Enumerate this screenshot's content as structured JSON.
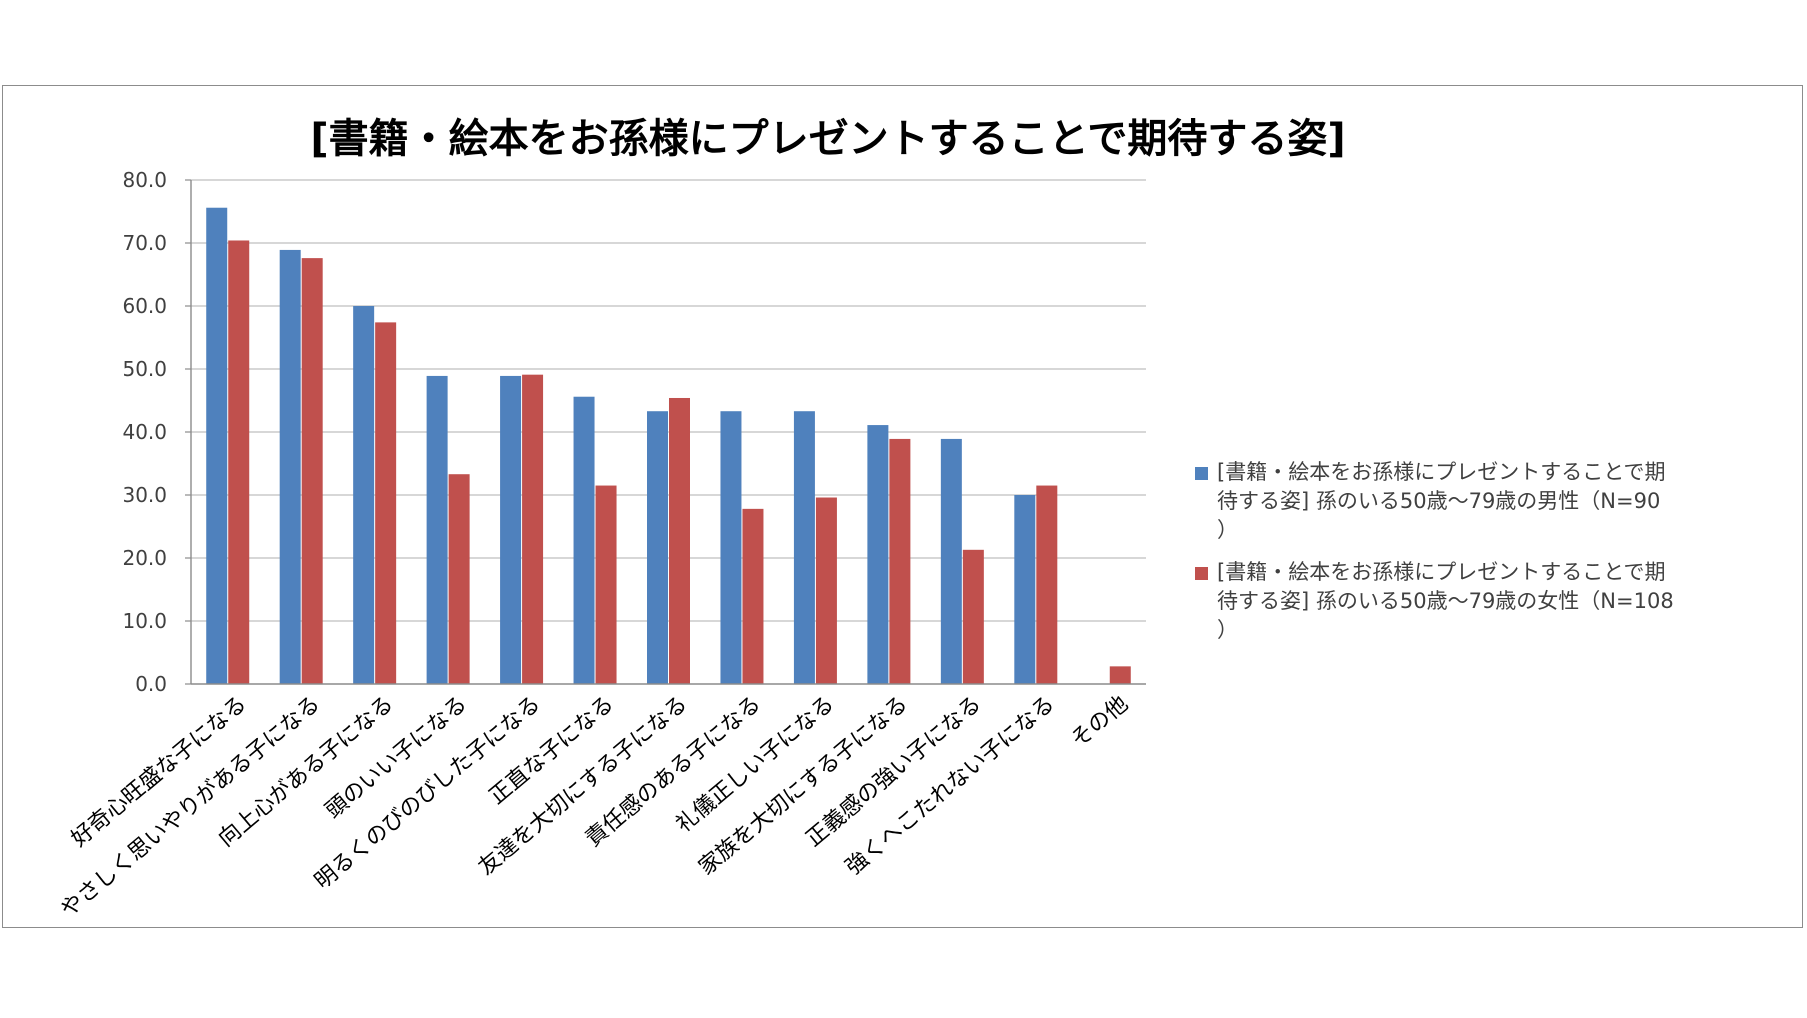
{
  "chart_data": {
    "type": "bar",
    "title": "[書籍・絵本をお孫様にプレゼントすることで期待する姿]",
    "xlabel": "",
    "ylabel": "",
    "ylim": [
      0,
      80
    ],
    "ytick_step": 10,
    "ytick_labels": [
      "0.0",
      "10.0",
      "20.0",
      "30.0",
      "40.0",
      "50.0",
      "60.0",
      "70.0",
      "80.0"
    ],
    "grid": true,
    "legend_position": "right",
    "categories": [
      "好奇心旺盛な子になる",
      "やさしく思いやりがある子になる",
      "向上心がある子になる",
      "頭のいい子になる",
      "明るくのびのびした子になる",
      "正直な子になる",
      "友達を大切にする子になる",
      "責任感のある子になる",
      "礼儀正しい子になる",
      "家族を大切にする子になる",
      "正義感の強い子になる",
      "強くへこたれない子になる",
      "その他"
    ],
    "series": [
      {
        "name": "[書籍・絵本をお孫様にプレゼントすることで期待する姿] 孫のいる50歳～79歳の男性（N=90）",
        "color": "#4f81bd",
        "values": [
          75.6,
          68.9,
          60.0,
          48.9,
          48.9,
          45.6,
          43.3,
          43.3,
          43.3,
          41.1,
          38.9,
          30.0,
          0.0
        ]
      },
      {
        "name": "[書籍・絵本をお孫様にプレゼントすることで期待する姿] 孫のいる50歳～79歳の女性（N=108）",
        "color": "#c0504d",
        "values": [
          70.4,
          67.6,
          57.4,
          33.3,
          49.1,
          31.5,
          45.4,
          27.8,
          29.6,
          38.9,
          21.3,
          31.5,
          2.8
        ]
      }
    ]
  },
  "legend": {
    "items": [
      {
        "line1": "[書籍・絵本をお孫様にプレゼントすることで期",
        "line2": "待する姿] 孫のいる50歳～79歳の男性（N=90",
        "line3": "）"
      },
      {
        "line1": "[書籍・絵本をお孫様にプレゼントすることで期",
        "line2": "待する姿] 孫のいる50歳～79歳の女性（N=108",
        "line3": "）"
      }
    ]
  }
}
